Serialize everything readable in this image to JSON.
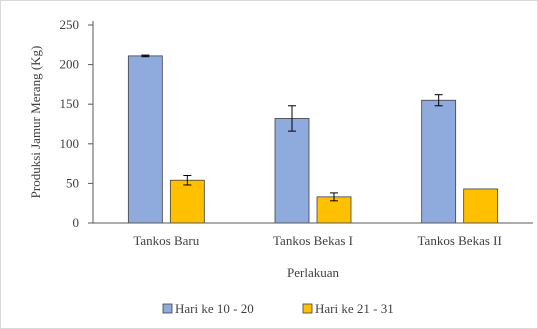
{
  "chart_data": {
    "type": "bar",
    "title": "",
    "xlabel": "Perlakuan",
    "ylabel": "Produksi Jamur Merang (Kg)",
    "ylim": [
      0,
      250
    ],
    "yticks": [
      0,
      50,
      100,
      150,
      200,
      250
    ],
    "categories": [
      "Tankos Baru",
      "Tankos Bekas I",
      "Tankos Bekas II"
    ],
    "series": [
      {
        "name": "Hari ke 10 - 20",
        "color": "#8faadc",
        "values": [
          211,
          132,
          155
        ],
        "errors": [
          1,
          16,
          7
        ]
      },
      {
        "name": "Hari ke 21 - 31",
        "color": "#ffc000",
        "values": [
          54,
          33,
          43
        ],
        "errors": [
          6,
          5,
          0
        ]
      }
    ],
    "grid": false,
    "legend_position": "bottom"
  }
}
